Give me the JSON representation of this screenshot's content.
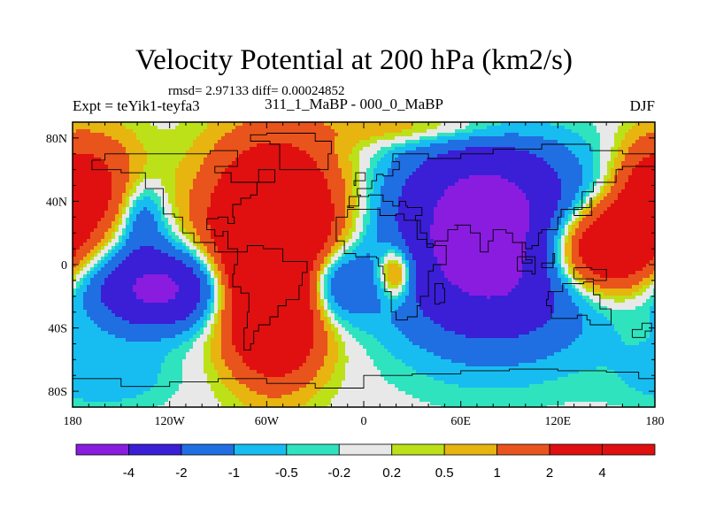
{
  "chart_data": {
    "type": "heatmap",
    "title": "Velocity Potential at 200 hPa (km2/s)",
    "stats_line": "rmsd= 2.97133 diff= 0.00024852",
    "left_label": "Expt = teYik1-teyfa3",
    "center_label": "311_1_MaBP - 000_0_MaBP",
    "right_label": "DJF",
    "xlim": [
      -180,
      180
    ],
    "ylim": [
      -90,
      90
    ],
    "x_ticks": [
      {
        "value": -180,
        "label": "180"
      },
      {
        "value": -120,
        "label": "120W"
      },
      {
        "value": -60,
        "label": "60W"
      },
      {
        "value": 0,
        "label": "0"
      },
      {
        "value": 60,
        "label": "60E"
      },
      {
        "value": 120,
        "label": "120E"
      },
      {
        "value": 180,
        "label": "180"
      }
    ],
    "y_ticks": [
      {
        "value": 80,
        "label": "80N"
      },
      {
        "value": 40,
        "label": "40N"
      },
      {
        "value": 0,
        "label": "0"
      },
      {
        "value": -40,
        "label": "40S"
      },
      {
        "value": -80,
        "label": "80S"
      }
    ],
    "levels": [
      -4,
      -2,
      -1,
      -0.5,
      -0.2,
      0.2,
      0.5,
      1,
      2,
      4
    ],
    "level_labels": [
      "-4",
      "-2",
      "-1",
      "-0.5",
      "-0.2",
      "0.2",
      "0.5",
      "1",
      "2",
      "4"
    ],
    "colors": [
      "#8a1ce0",
      "#3a1fd6",
      "#1f6fe2",
      "#17bdf0",
      "#30e3bf",
      "#e8e8e8",
      "#bde118",
      "#e7b410",
      "#e8541c",
      "#e01010",
      "#e01010"
    ],
    "field_centers": [
      {
        "lon": 80,
        "lat": 8,
        "amp": -5.2,
        "rx": 45,
        "ry": 40
      },
      {
        "lon": 70,
        "lat": 50,
        "amp": -1.6,
        "rx": 35,
        "ry": 25
      },
      {
        "lon": -125,
        "lat": -15,
        "amp": -4.8,
        "rx": 30,
        "ry": 18
      },
      {
        "lon": -22,
        "lat": -12,
        "amp": -3.4,
        "rx": 18,
        "ry": 18
      },
      {
        "lon": -137,
        "lat": 30,
        "amp": -1.8,
        "rx": 10,
        "ry": 16
      },
      {
        "lon": -160,
        "lat": -70,
        "amp": -0.9,
        "rx": 30,
        "ry": 15
      },
      {
        "lon": -55,
        "lat": 20,
        "amp": 5.5,
        "rx": 30,
        "ry": 40
      },
      {
        "lon": -55,
        "lat": -30,
        "amp": 4.0,
        "rx": 20,
        "ry": 30
      },
      {
        "lon": 145,
        "lat": 10,
        "amp": 5.2,
        "rx": 25,
        "ry": 20
      },
      {
        "lon": 172,
        "lat": 40,
        "amp": 2.2,
        "rx": 15,
        "ry": 25
      },
      {
        "lon": -165,
        "lat": 50,
        "amp": 2.2,
        "rx": 20,
        "ry": 25
      },
      {
        "lon": 20,
        "lat": -5,
        "amp": 3.0,
        "rx": 8,
        "ry": 12
      },
      {
        "lon": 40,
        "lat": 86,
        "amp": 1.2,
        "rx": 40,
        "ry": 8
      }
    ]
  }
}
